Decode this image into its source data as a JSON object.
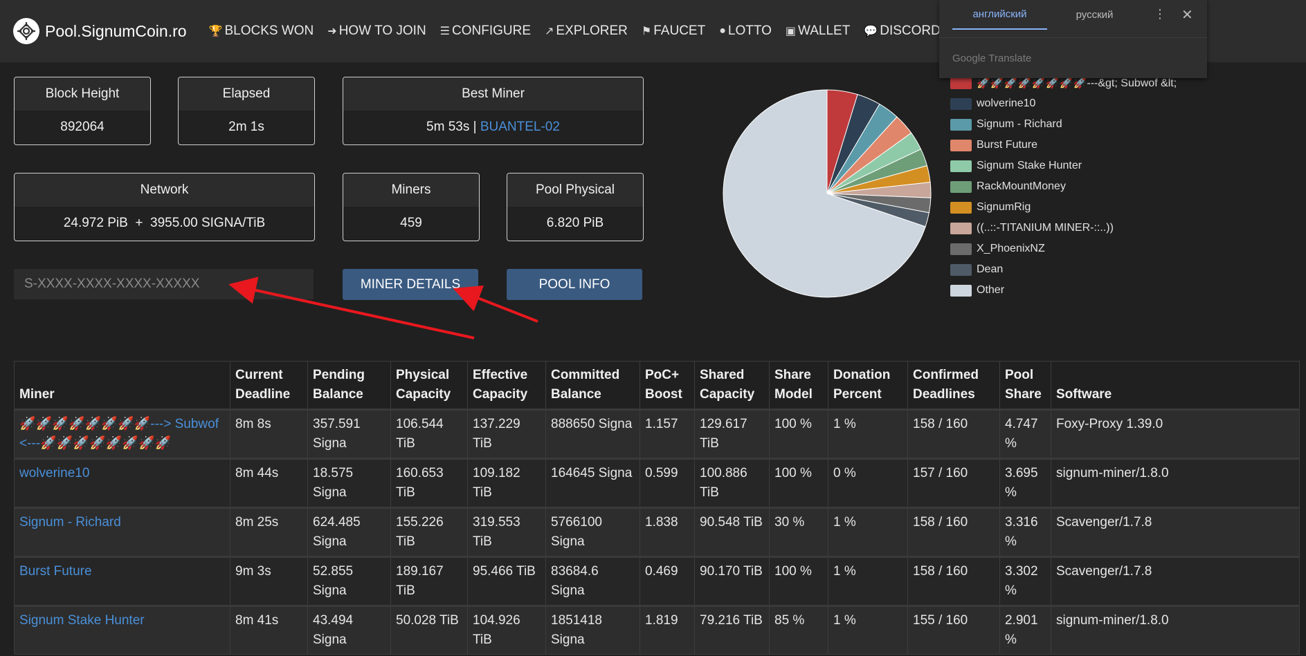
{
  "nav": {
    "brand": "Pool.SignumCoin.ro",
    "items": [
      {
        "label": "BLOCKS WON",
        "icon": "trophy-icon",
        "glyph": "🏆"
      },
      {
        "label": "HOW TO JOIN",
        "icon": "sign-in-icon",
        "glyph": "➜"
      },
      {
        "label": "CONFIGURE",
        "icon": "sliders-icon",
        "glyph": "☰"
      },
      {
        "label": "EXPLORER",
        "icon": "external-link-icon",
        "glyph": "↗"
      },
      {
        "label": "FAUCET",
        "icon": "faucet-icon",
        "glyph": "⚑"
      },
      {
        "label": "LOTTO",
        "icon": "github-icon",
        "glyph": "●"
      },
      {
        "label": "WALLET",
        "icon": "wallet-icon",
        "glyph": "▣"
      },
      {
        "label": "DISCORD",
        "icon": "discord-icon",
        "glyph": "💬"
      }
    ]
  },
  "stats": {
    "block_height": {
      "label": "Block Height",
      "value": "892064"
    },
    "elapsed": {
      "label": "Elapsed",
      "value": "2m 1s"
    },
    "best_miner": {
      "label": "Best Miner",
      "time": "5m 53s",
      "sep": " | ",
      "miner": "BUANTEL-02"
    },
    "network": {
      "label": "Network",
      "value": "24.972 PiB  +  3955.00 SIGNA/TiB"
    },
    "miners": {
      "label": "Miners",
      "value": "459"
    },
    "pool_physical": {
      "label": "Pool Physical",
      "value": "6.820 PiB"
    }
  },
  "search": {
    "placeholder": "S-XXXX-XXXX-XXXX-XXXXX"
  },
  "buttons": {
    "miner_details": "MINER DETAILS",
    "pool_info": "POOL INFO"
  },
  "translate": {
    "tab_active": "английский",
    "tab_other": "русский",
    "brand": "Google Translate",
    "menu_icon": "more-vertical-icon",
    "close_icon": "close-icon"
  },
  "chart_data": {
    "type": "pie",
    "title": "",
    "slices": [
      {
        "label": "🚀🚀🚀🚀🚀🚀🚀🚀---&gt; Subwof &lt;",
        "value": 4.747,
        "color": "#c0393b"
      },
      {
        "label": "wolverine10",
        "value": 3.695,
        "color": "#2e4053"
      },
      {
        "label": "Signum - Richard",
        "value": 3.316,
        "color": "#5b9aa8"
      },
      {
        "label": "Burst Future",
        "value": 3.302,
        "color": "#e0866a"
      },
      {
        "label": "Signum Stake Hunter",
        "value": 2.901,
        "color": "#8fcaa8"
      },
      {
        "label": "RackMountMoney",
        "value": 2.7,
        "color": "#6e9e78"
      },
      {
        "label": "SignumRig",
        "value": 2.6,
        "color": "#d48f22"
      },
      {
        "label": "((..::-TITANIUM MINER-::..))",
        "value": 2.4,
        "color": "#c8a69a"
      },
      {
        "label": "X_PhoenixNZ",
        "value": 2.3,
        "color": "#6b6b6b"
      },
      {
        "label": "Dean",
        "value": 2.2,
        "color": "#4f5b66"
      },
      {
        "label": "Other",
        "value": 69.839,
        "color": "#cdd6de"
      }
    ],
    "legend_position": "right"
  },
  "table": {
    "headers": [
      [
        "Miner",
        ""
      ],
      [
        "Current",
        "Deadline"
      ],
      [
        "Pending",
        "Balance"
      ],
      [
        "Physical",
        "Capacity"
      ],
      [
        "Effective",
        "Capacity"
      ],
      [
        "Committed",
        "Balance"
      ],
      [
        "PoC+",
        "Boost"
      ],
      [
        "Shared",
        "Capacity"
      ],
      [
        "Share",
        "Model"
      ],
      [
        "Donation",
        "Percent"
      ],
      [
        "Confirmed",
        "Deadlines"
      ],
      [
        "Pool",
        "Share"
      ],
      [
        "Software",
        ""
      ]
    ],
    "rows": [
      {
        "miner": "🚀🚀🚀🚀🚀🚀🚀🚀---> Subwof <---🚀🚀🚀🚀🚀🚀🚀🚀",
        "deadline": "8m 8s",
        "pending": "357.591 Signa",
        "physical": "106.544 TiB",
        "effective": "137.229 TiB",
        "committed": "888650 Signa",
        "boost": "1.157",
        "shared": "129.617 TiB",
        "model": "100 %",
        "donation": "1 %",
        "confirmed": "158 / 160",
        "share": "4.747 %",
        "software": "Foxy-Proxy 1.39.0"
      },
      {
        "miner": "wolverine10",
        "deadline": "8m 44s",
        "pending": "18.575 Signa",
        "physical": "160.653 TiB",
        "effective": "109.182 TiB",
        "committed": "164645 Signa",
        "boost": "0.599",
        "shared": "100.886 TiB",
        "model": "100 %",
        "donation": "0 %",
        "confirmed": "157 / 160",
        "share": "3.695 %",
        "software": "signum-miner/1.8.0"
      },
      {
        "miner": "Signum - Richard",
        "deadline": "8m 25s",
        "pending": "624.485 Signa",
        "physical": "155.226 TiB",
        "effective": "319.553 TiB",
        "committed": "5766100 Signa",
        "boost": "1.838",
        "shared": "90.548 TiB",
        "model": "30 %",
        "donation": "1 %",
        "confirmed": "158 / 160",
        "share": "3.316 %",
        "software": "Scavenger/1.7.8"
      },
      {
        "miner": "Burst Future",
        "deadline": "9m 3s",
        "pending": "52.855 Signa",
        "physical": "189.167 TiB",
        "effective": "95.466 TiB",
        "committed": "83684.6 Signa",
        "boost": "0.469",
        "shared": "90.170 TiB",
        "model": "100 %",
        "donation": "1 %",
        "confirmed": "158 / 160",
        "share": "3.302 %",
        "software": "Scavenger/1.7.8"
      },
      {
        "miner": "Signum Stake Hunter",
        "deadline": "8m 41s",
        "pending": "43.494 Signa",
        "physical": "50.028 TiB",
        "effective": "104.926 TiB",
        "committed": "1851418 Signa",
        "boost": "1.819",
        "shared": "79.216 TiB",
        "model": "85 %",
        "donation": "1 %",
        "confirmed": "155 / 160",
        "share": "2.901 %",
        "software": "signum-miner/1.8.0"
      }
    ]
  }
}
